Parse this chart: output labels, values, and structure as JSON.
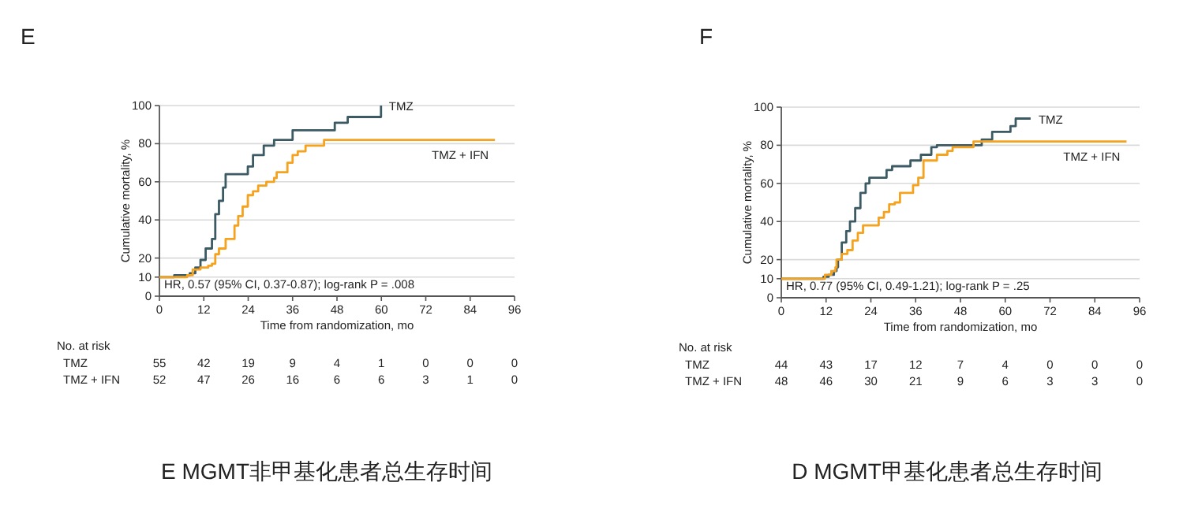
{
  "chart_data": [
    {
      "type": "step",
      "title": "E",
      "xlabel": "Time from randomization, mo",
      "ylabel": "Cumulative mortality, %",
      "xlim": [
        0,
        96
      ],
      "xticks": [
        0,
        12,
        24,
        36,
        48,
        60,
        72,
        84,
        96
      ],
      "ylim": [
        0,
        100
      ],
      "yticks": [
        0,
        10,
        20,
        40,
        60,
        80,
        100
      ],
      "grid": "y",
      "series": [
        {
          "name": "TMZ",
          "color": "#3c5a64",
          "x": [
            0,
            4,
            7.5,
            8.2,
            9.7,
            11.1,
            12.5,
            13.6,
            14.2,
            15.1,
            16.1,
            17.2,
            17.9,
            23.6,
            23.9,
            25.3,
            28.2,
            31,
            35.3,
            36,
            46.6,
            47.4,
            50.9,
            59.4,
            59.9
          ],
          "values": [
            10,
            11,
            11,
            12,
            15,
            19,
            25,
            25,
            30,
            43,
            50,
            57,
            64,
            64,
            68,
            74,
            79,
            82,
            82,
            87,
            87,
            91,
            94,
            94,
            100
          ]
        },
        {
          "name": "TMZ + IFN",
          "color": "#f5a21e",
          "x": [
            0,
            7.1,
            7.5,
            9,
            11.1,
            13.2,
            14.2,
            15.1,
            16.1,
            17.5,
            17.9,
            19.9,
            20.3,
            21.3,
            22.5,
            23.9,
            25.3,
            26.7,
            28.9,
            31,
            31.7,
            33.8,
            34.6,
            36,
            37.4,
            39.5,
            43.8,
            44.5,
            90.7
          ],
          "values": [
            10,
            10,
            11,
            14,
            15,
            16,
            17,
            22,
            25,
            25,
            30,
            30,
            37,
            42,
            47,
            53,
            55,
            58,
            60,
            62,
            65,
            65,
            70,
            74,
            76,
            79,
            79,
            82,
            82
          ]
        }
      ],
      "annotations": [
        "HR, 0.57 (95% CI, 0.37-0.87); log-rank P = .008",
        "E MGMT非甲基化患者总生存时间",
        "No. at risk",
        "TMZ",
        "55",
        "42",
        "19",
        "9",
        "4",
        "1",
        "0",
        "0",
        "0",
        "TMZ + IFN",
        "52",
        "47",
        "26",
        "16",
        "6",
        "6",
        "3",
        "1",
        "0"
      ]
    },
    {
      "type": "step",
      "title": "F",
      "xlabel": "Time from randomization, mo",
      "ylabel": "Cumulative mortality, %",
      "xlim": [
        0,
        96
      ],
      "xticks": [
        0,
        12,
        24,
        36,
        48,
        60,
        72,
        84,
        96
      ],
      "ylim": [
        0,
        100
      ],
      "yticks": [
        0,
        10,
        20,
        40,
        60,
        80,
        100
      ],
      "grid": "y",
      "series": [
        {
          "name": "TMZ",
          "color": "#3c5a64",
          "x": [
            0,
            10.6,
            11.3,
            12.7,
            14.1,
            14.8,
            15.2,
            16.2,
            17.4,
            18.4,
            19.8,
            21.2,
            22.6,
            23.6,
            27.5,
            28.2,
            29.7,
            34.6,
            37.4,
            40.2,
            41.7,
            52.9,
            53.7,
            56.5,
            60.7,
            61.4,
            62.8,
            66.8
          ],
          "values": [
            10,
            10,
            11,
            12,
            14,
            16,
            20,
            29,
            35,
            40,
            47,
            55,
            60,
            63,
            63,
            67,
            69,
            72,
            75,
            79,
            80,
            80,
            83,
            87,
            87,
            90,
            94,
            94
          ]
        },
        {
          "name": "TMZ + IFN",
          "color": "#f5a21e",
          "x": [
            0,
            10.6,
            11.7,
            13.4,
            14.5,
            14.8,
            16.2,
            17.7,
            19.1,
            20.5,
            21.9,
            24.7,
            26.1,
            27.5,
            28.9,
            30.4,
            31.8,
            34.6,
            35.3,
            36.7,
            38.1,
            41.7,
            44.5,
            45.9,
            51.5,
            92.5
          ],
          "values": [
            10,
            10,
            12,
            14,
            16,
            20,
            23,
            25,
            30,
            34,
            38,
            38,
            42,
            45,
            49,
            50,
            55,
            55,
            59,
            63,
            72,
            75,
            77,
            79,
            82,
            82
          ]
        }
      ],
      "annotations": [
        "HR, 0.77 (95% CI, 0.49-1.21); log-rank P = .25",
        "D MGMT甲基化患者总生存时间",
        "No. at risk",
        "TMZ",
        "44",
        "43",
        "17",
        "12",
        "7",
        "4",
        "0",
        "0",
        "0",
        "TMZ + IFN",
        "48",
        "46",
        "30",
        "21",
        "9",
        "6",
        "3",
        "3",
        "0"
      ]
    }
  ]
}
